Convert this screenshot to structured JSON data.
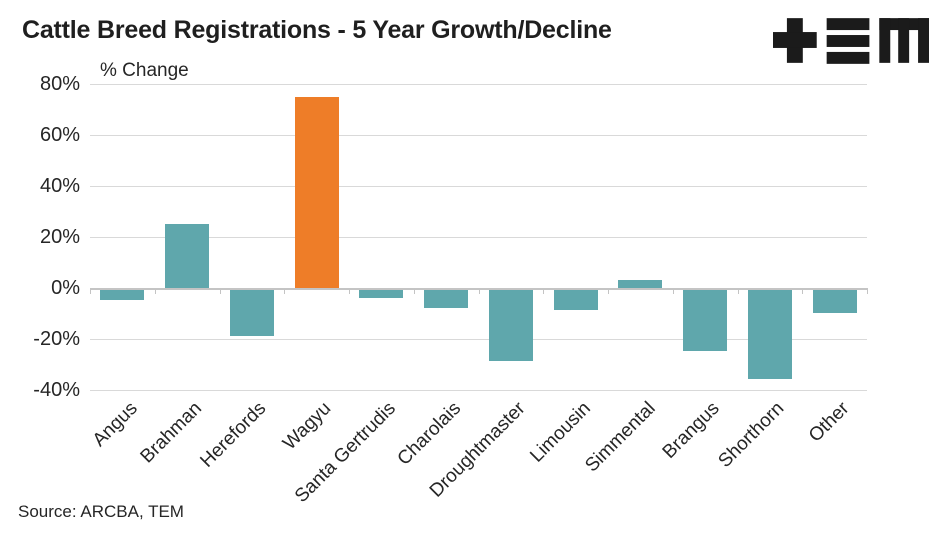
{
  "logo": {
    "name": "tem-logo",
    "color": "#1B1B1B"
  },
  "chart_data": {
    "type": "bar",
    "title": "Cattle Breed Registrations - 5 Year Growth/Decline",
    "inline_axis_label": "% Change",
    "categories": [
      "Angus",
      "Brahman",
      "Herefords",
      "Wagyu",
      "Santa Gertrudis",
      "Charolais",
      "Droughtmaster",
      "Limousin",
      "Simmental",
      "Brangus",
      "Shorthorn",
      "Other"
    ],
    "values": [
      -4,
      25,
      -18,
      75,
      -3,
      -7,
      -28,
      -8,
      3,
      -24,
      -35,
      -9
    ],
    "unit": "%",
    "ylim": [
      -40,
      80
    ],
    "ytick_step": 20,
    "ytick_labels": [
      "80%",
      "60%",
      "40%",
      "20%",
      "0%",
      "-20%",
      "-40%"
    ],
    "grid": true,
    "legend": "none",
    "bar_color": "#5FA7AC",
    "highlight_color": "#EE7D28",
    "highlight_category": "Wagyu",
    "source": "Source: ARCBA, TEM"
  }
}
